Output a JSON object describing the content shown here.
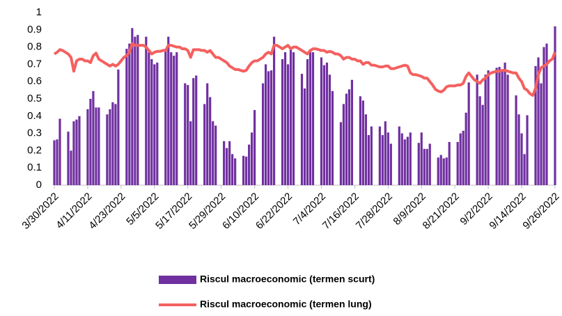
{
  "chart_data": {
    "type": "combo",
    "categories": [
      "3/30/2022",
      null,
      null,
      null,
      null,
      null,
      null,
      null,
      null,
      null,
      null,
      null,
      "4/11/2022",
      null,
      null,
      null,
      null,
      null,
      null,
      null,
      null,
      null,
      null,
      null,
      "4/23/2022",
      null,
      null,
      null,
      null,
      null,
      null,
      null,
      null,
      null,
      null,
      null,
      "5/5/2022",
      null,
      null,
      null,
      null,
      null,
      null,
      null,
      null,
      null,
      null,
      null,
      "5/17/2022",
      null,
      null,
      null,
      null,
      null,
      null,
      null,
      null,
      null,
      null,
      null,
      "5/29/2022",
      null,
      null,
      null,
      null,
      null,
      null,
      null,
      null,
      null,
      null,
      null,
      "6/10/2022",
      null,
      null,
      null,
      null,
      null,
      null,
      null,
      null,
      null,
      null,
      null,
      "6/22/2022",
      null,
      null,
      null,
      null,
      null,
      null,
      null,
      null,
      null,
      null,
      null,
      "7/4/2022",
      null,
      null,
      null,
      null,
      null,
      null,
      null,
      null,
      null,
      null,
      null,
      "7/16/2022",
      null,
      null,
      null,
      null,
      null,
      null,
      null,
      null,
      null,
      null,
      null,
      "7/28/2022",
      null,
      null,
      null,
      null,
      null,
      null,
      null,
      null,
      null,
      null,
      null,
      "8/9/2022",
      null,
      null,
      null,
      null,
      null,
      null,
      null,
      null,
      null,
      null,
      null,
      "8/21/2022",
      null,
      null,
      null,
      null,
      null,
      null,
      null,
      null,
      null,
      null,
      null,
      "9/2/2022",
      null,
      null,
      null,
      null,
      null,
      null,
      null,
      null,
      null,
      null,
      null,
      "9/14/2022",
      null,
      null,
      null,
      null,
      null,
      null,
      null,
      null,
      null,
      null,
      null,
      "9/26/2022"
    ],
    "series": [
      {
        "name": "Riscul macroeconomic (termen scurt)",
        "type": "bar",
        "color": "#7030a0",
        "values": [
          0.26,
          0.265,
          0.385,
          null,
          null,
          0.31,
          0.2,
          0.37,
          0.38,
          0.4,
          null,
          null,
          0.44,
          0.5,
          0.545,
          0.45,
          0.45,
          null,
          null,
          0.41,
          0.44,
          0.48,
          0.47,
          0.67,
          null,
          null,
          0.79,
          0.82,
          0.91,
          0.86,
          0.87,
          null,
          null,
          0.86,
          0.77,
          0.73,
          0.7,
          0.71,
          null,
          null,
          0.79,
          0.86,
          0.77,
          0.75,
          0.77,
          null,
          null,
          0.59,
          0.58,
          0.37,
          0.62,
          0.635,
          null,
          null,
          0.47,
          0.59,
          0.51,
          0.37,
          0.345,
          null,
          null,
          0.255,
          0.215,
          0.255,
          0.18,
          0.155,
          null,
          null,
          0.17,
          0.165,
          0.235,
          0.305,
          0.435,
          null,
          null,
          0.59,
          0.7,
          0.66,
          0.665,
          0.86,
          null,
          null,
          0.73,
          0.77,
          0.7,
          0.79,
          0.77,
          null,
          null,
          0.645,
          0.56,
          0.73,
          0.78,
          0.77,
          null,
          null,
          0.74,
          0.695,
          0.71,
          0.64,
          0.545,
          null,
          null,
          0.365,
          0.47,
          0.53,
          0.555,
          0.61,
          null,
          null,
          0.515,
          0.49,
          0.41,
          0.29,
          0.34,
          null,
          null,
          0.34,
          0.29,
          0.37,
          0.305,
          0.24,
          null,
          null,
          0.34,
          0.3,
          0.265,
          0.28,
          0.305,
          null,
          null,
          0.245,
          0.305,
          0.21,
          0.21,
          0.24,
          null,
          null,
          0.16,
          0.175,
          0.155,
          0.16,
          0.25,
          null,
          null,
          0.25,
          0.3,
          0.315,
          0.42,
          0.595,
          null,
          null,
          0.64,
          0.515,
          0.465,
          0.64,
          0.665,
          null,
          null,
          0.68,
          0.685,
          0.66,
          0.71,
          0.64,
          null,
          null,
          0.52,
          0.41,
          0.3,
          0.18,
          0.405,
          null,
          null,
          0.69,
          0.74,
          0.59,
          0.8,
          0.82,
          null,
          null,
          0.92
        ]
      },
      {
        "name": "Riscul macroeconomic (termen lung)",
        "type": "line",
        "color": "#f4605f",
        "values": [
          0.76,
          0.77,
          0.785,
          0.78,
          0.77,
          0.76,
          0.74,
          0.66,
          0.72,
          0.73,
          0.73,
          0.72,
          0.72,
          0.71,
          0.75,
          0.765,
          0.73,
          0.72,
          0.71,
          0.7,
          0.69,
          0.7,
          0.69,
          0.7,
          0.72,
          0.74,
          0.75,
          0.77,
          0.82,
          0.81,
          0.81,
          0.81,
          0.81,
          0.8,
          0.78,
          0.76,
          0.77,
          0.775,
          0.775,
          0.78,
          0.78,
          0.81,
          0.81,
          0.805,
          0.8,
          0.8,
          0.79,
          0.79,
          0.78,
          0.74,
          0.785,
          0.785,
          0.785,
          0.78,
          0.78,
          0.77,
          0.78,
          0.76,
          0.74,
          0.74,
          0.73,
          0.72,
          0.71,
          0.69,
          0.68,
          0.67,
          0.67,
          0.665,
          0.66,
          0.665,
          0.69,
          0.71,
          0.72,
          0.72,
          0.73,
          0.74,
          0.76,
          0.77,
          0.76,
          0.81,
          0.81,
          0.8,
          0.79,
          0.8,
          0.81,
          0.79,
          0.8,
          0.8,
          0.79,
          0.78,
          0.77,
          0.76,
          0.78,
          0.79,
          0.79,
          0.785,
          0.78,
          0.78,
          0.77,
          0.775,
          0.77,
          0.76,
          0.76,
          0.75,
          0.73,
          0.74,
          0.74,
          0.73,
          0.73,
          0.72,
          0.72,
          0.7,
          0.71,
          0.71,
          0.695,
          0.695,
          0.69,
          0.685,
          0.685,
          0.69,
          0.69,
          0.675,
          0.675,
          0.68,
          0.685,
          0.69,
          0.695,
          0.69,
          0.65,
          0.64,
          0.64,
          0.635,
          0.63,
          0.62,
          0.62,
          0.6,
          0.58,
          0.555,
          0.545,
          0.54,
          0.55,
          0.57,
          0.575,
          0.575,
          0.575,
          0.58,
          0.58,
          0.59,
          0.63,
          0.65,
          0.63,
          0.61,
          0.6,
          0.59,
          0.61,
          0.62,
          0.64,
          0.65,
          0.655,
          0.66,
          0.66,
          0.665,
          0.665,
          0.66,
          0.655,
          0.65,
          0.65,
          0.62,
          0.6,
          0.56,
          0.55,
          0.53,
          0.52,
          0.56,
          0.64,
          0.68,
          0.69,
          0.7,
          0.72,
          0.73,
          0.77
        ]
      }
    ],
    "ylim": [
      0,
      1
    ],
    "yticks": [
      0,
      0.1,
      0.2,
      0.3,
      0.4,
      0.5,
      0.6,
      0.7,
      0.8,
      0.9,
      1
    ],
    "grid": false
  }
}
